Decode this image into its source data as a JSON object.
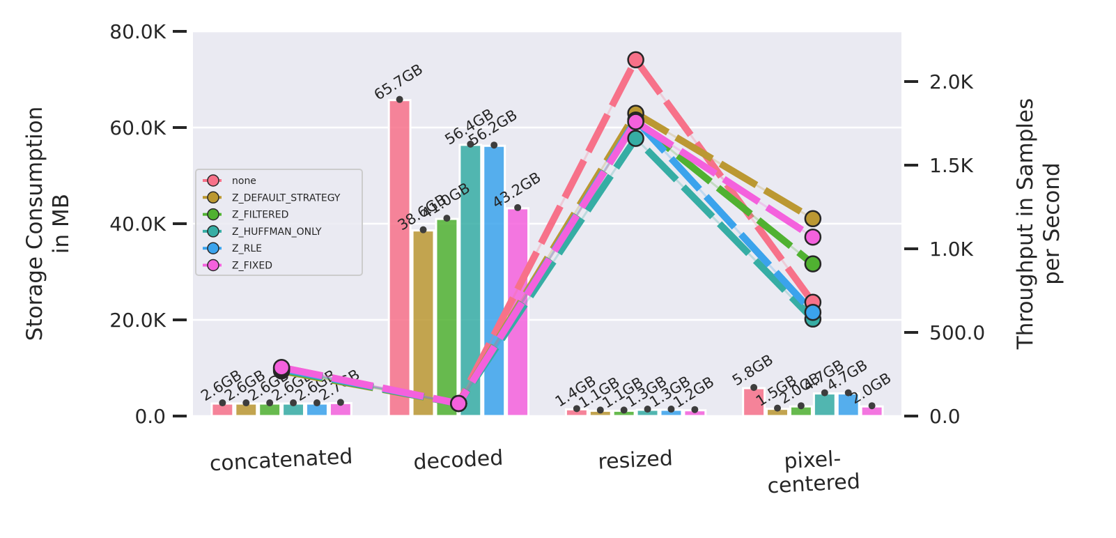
{
  "chart_data": {
    "type": "bar",
    "categories": [
      "concatenated",
      "decoded",
      "resized",
      "pixel-centered"
    ],
    "category_display": [
      [
        "concatenated"
      ],
      [
        "decoded"
      ],
      [
        "resized"
      ],
      [
        "pixel-",
        "centered"
      ]
    ],
    "ylabel": [
      "Storage Consumption",
      "in MB"
    ],
    "y2label": [
      "Throughput in Samples",
      "per Second"
    ],
    "ylim": [
      0,
      80000
    ],
    "y2lim": [
      0,
      2300
    ],
    "yticks": [
      {
        "value": 0,
        "label": "0.0"
      },
      {
        "value": 20000,
        "label": "20.0K"
      },
      {
        "value": 40000,
        "label": "40.0K"
      },
      {
        "value": 60000,
        "label": "60.0K"
      },
      {
        "value": 80000,
        "label": "80.0K"
      }
    ],
    "y2ticks": [
      {
        "value": 0,
        "label": "0.0"
      },
      {
        "value": 500,
        "label": "500.0"
      },
      {
        "value": 1000,
        "label": "1.0K"
      },
      {
        "value": 1500,
        "label": "1.5K"
      },
      {
        "value": 2000,
        "label": "2.0K"
      }
    ],
    "grid": true,
    "legend_position": "center-left",
    "series": [
      {
        "name": "none",
        "color": "#f77189",
        "storage_mb": [
          2600,
          65700,
          1400,
          5800
        ],
        "storage_labels": [
          "2.6GB",
          "65.7GB",
          "1.4GB",
          "5.8GB"
        ],
        "throughput": [
          290,
          75,
          2130,
          680
        ]
      },
      {
        "name": "Z_DEFAULT_STRATEGY",
        "color": "#bb9832",
        "storage_mb": [
          2600,
          38600,
          1100,
          1500
        ],
        "storage_labels": [
          "2.6GB",
          "38.6GB",
          "1.1GB",
          "1.5GB"
        ],
        "throughput": [
          270,
          75,
          1810,
          1180
        ]
      },
      {
        "name": "Z_FILTERED",
        "color": "#50b131",
        "storage_mb": [
          2600,
          41000,
          1100,
          2000
        ],
        "storage_labels": [
          "2.6GB",
          "41.0GB",
          "1.1GB",
          "2.0GB"
        ],
        "throughput": [
          275,
          75,
          1760,
          910
        ]
      },
      {
        "name": "Z_HUFFMAN_ONLY",
        "color": "#36ada4",
        "storage_mb": [
          2600,
          56400,
          1300,
          4700
        ],
        "storage_labels": [
          "2.6GB",
          "56.4GB",
          "1.3GB",
          "4.7GB"
        ],
        "throughput": [
          280,
          75,
          1660,
          580
        ]
      },
      {
        "name": "Z_RLE",
        "color": "#3ba3ec",
        "storage_mb": [
          2600,
          56200,
          1300,
          4700
        ],
        "storage_labels": [
          "2.6GB",
          "56.2GB",
          "1.3GB",
          "4.7GB"
        ],
        "throughput": [
          285,
          75,
          1770,
          620
        ]
      },
      {
        "name": "Z_FIXED",
        "color": "#f461dd",
        "storage_mb": [
          2700,
          43200,
          1200,
          2000
        ],
        "storage_labels": [
          "2.7GB",
          "43.2GB",
          "1.2GB",
          "2.0GB"
        ],
        "throughput": [
          290,
          75,
          1760,
          1070
        ]
      }
    ]
  }
}
